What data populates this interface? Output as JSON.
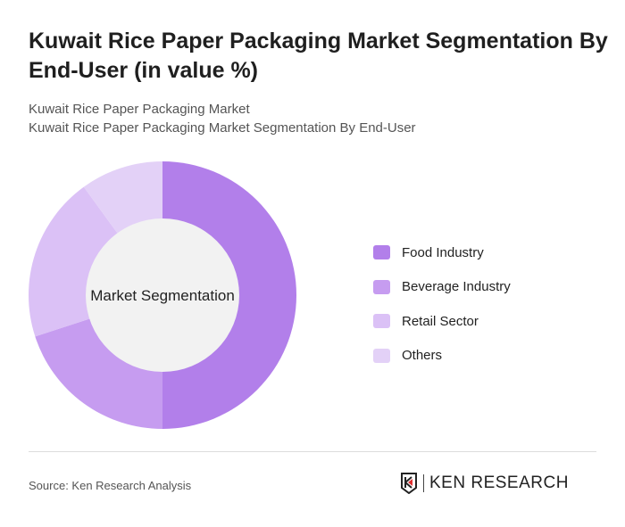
{
  "title": "Kuwait Rice Paper Packaging Market Segmentation By End-User (in value %)",
  "subtitle1": "Kuwait Rice Paper Packaging Market",
  "subtitle2": "Kuwait Rice Paper Packaging Market Segmentation By End-User",
  "source": "Source: Ken Research Analysis",
  "logo_text": "KEN RESEARCH",
  "chart_data": {
    "type": "pie",
    "variant": "donut",
    "center_label": "Market Segmentation",
    "categories": [
      "Food Industry",
      "Beverage Industry",
      "Retail Sector",
      "Others"
    ],
    "values": [
      50,
      20,
      20,
      10
    ],
    "colors": [
      "#b27fea",
      "#c69cf0",
      "#dbc1f6",
      "#e3d1f7"
    ],
    "legend_position": "right"
  }
}
